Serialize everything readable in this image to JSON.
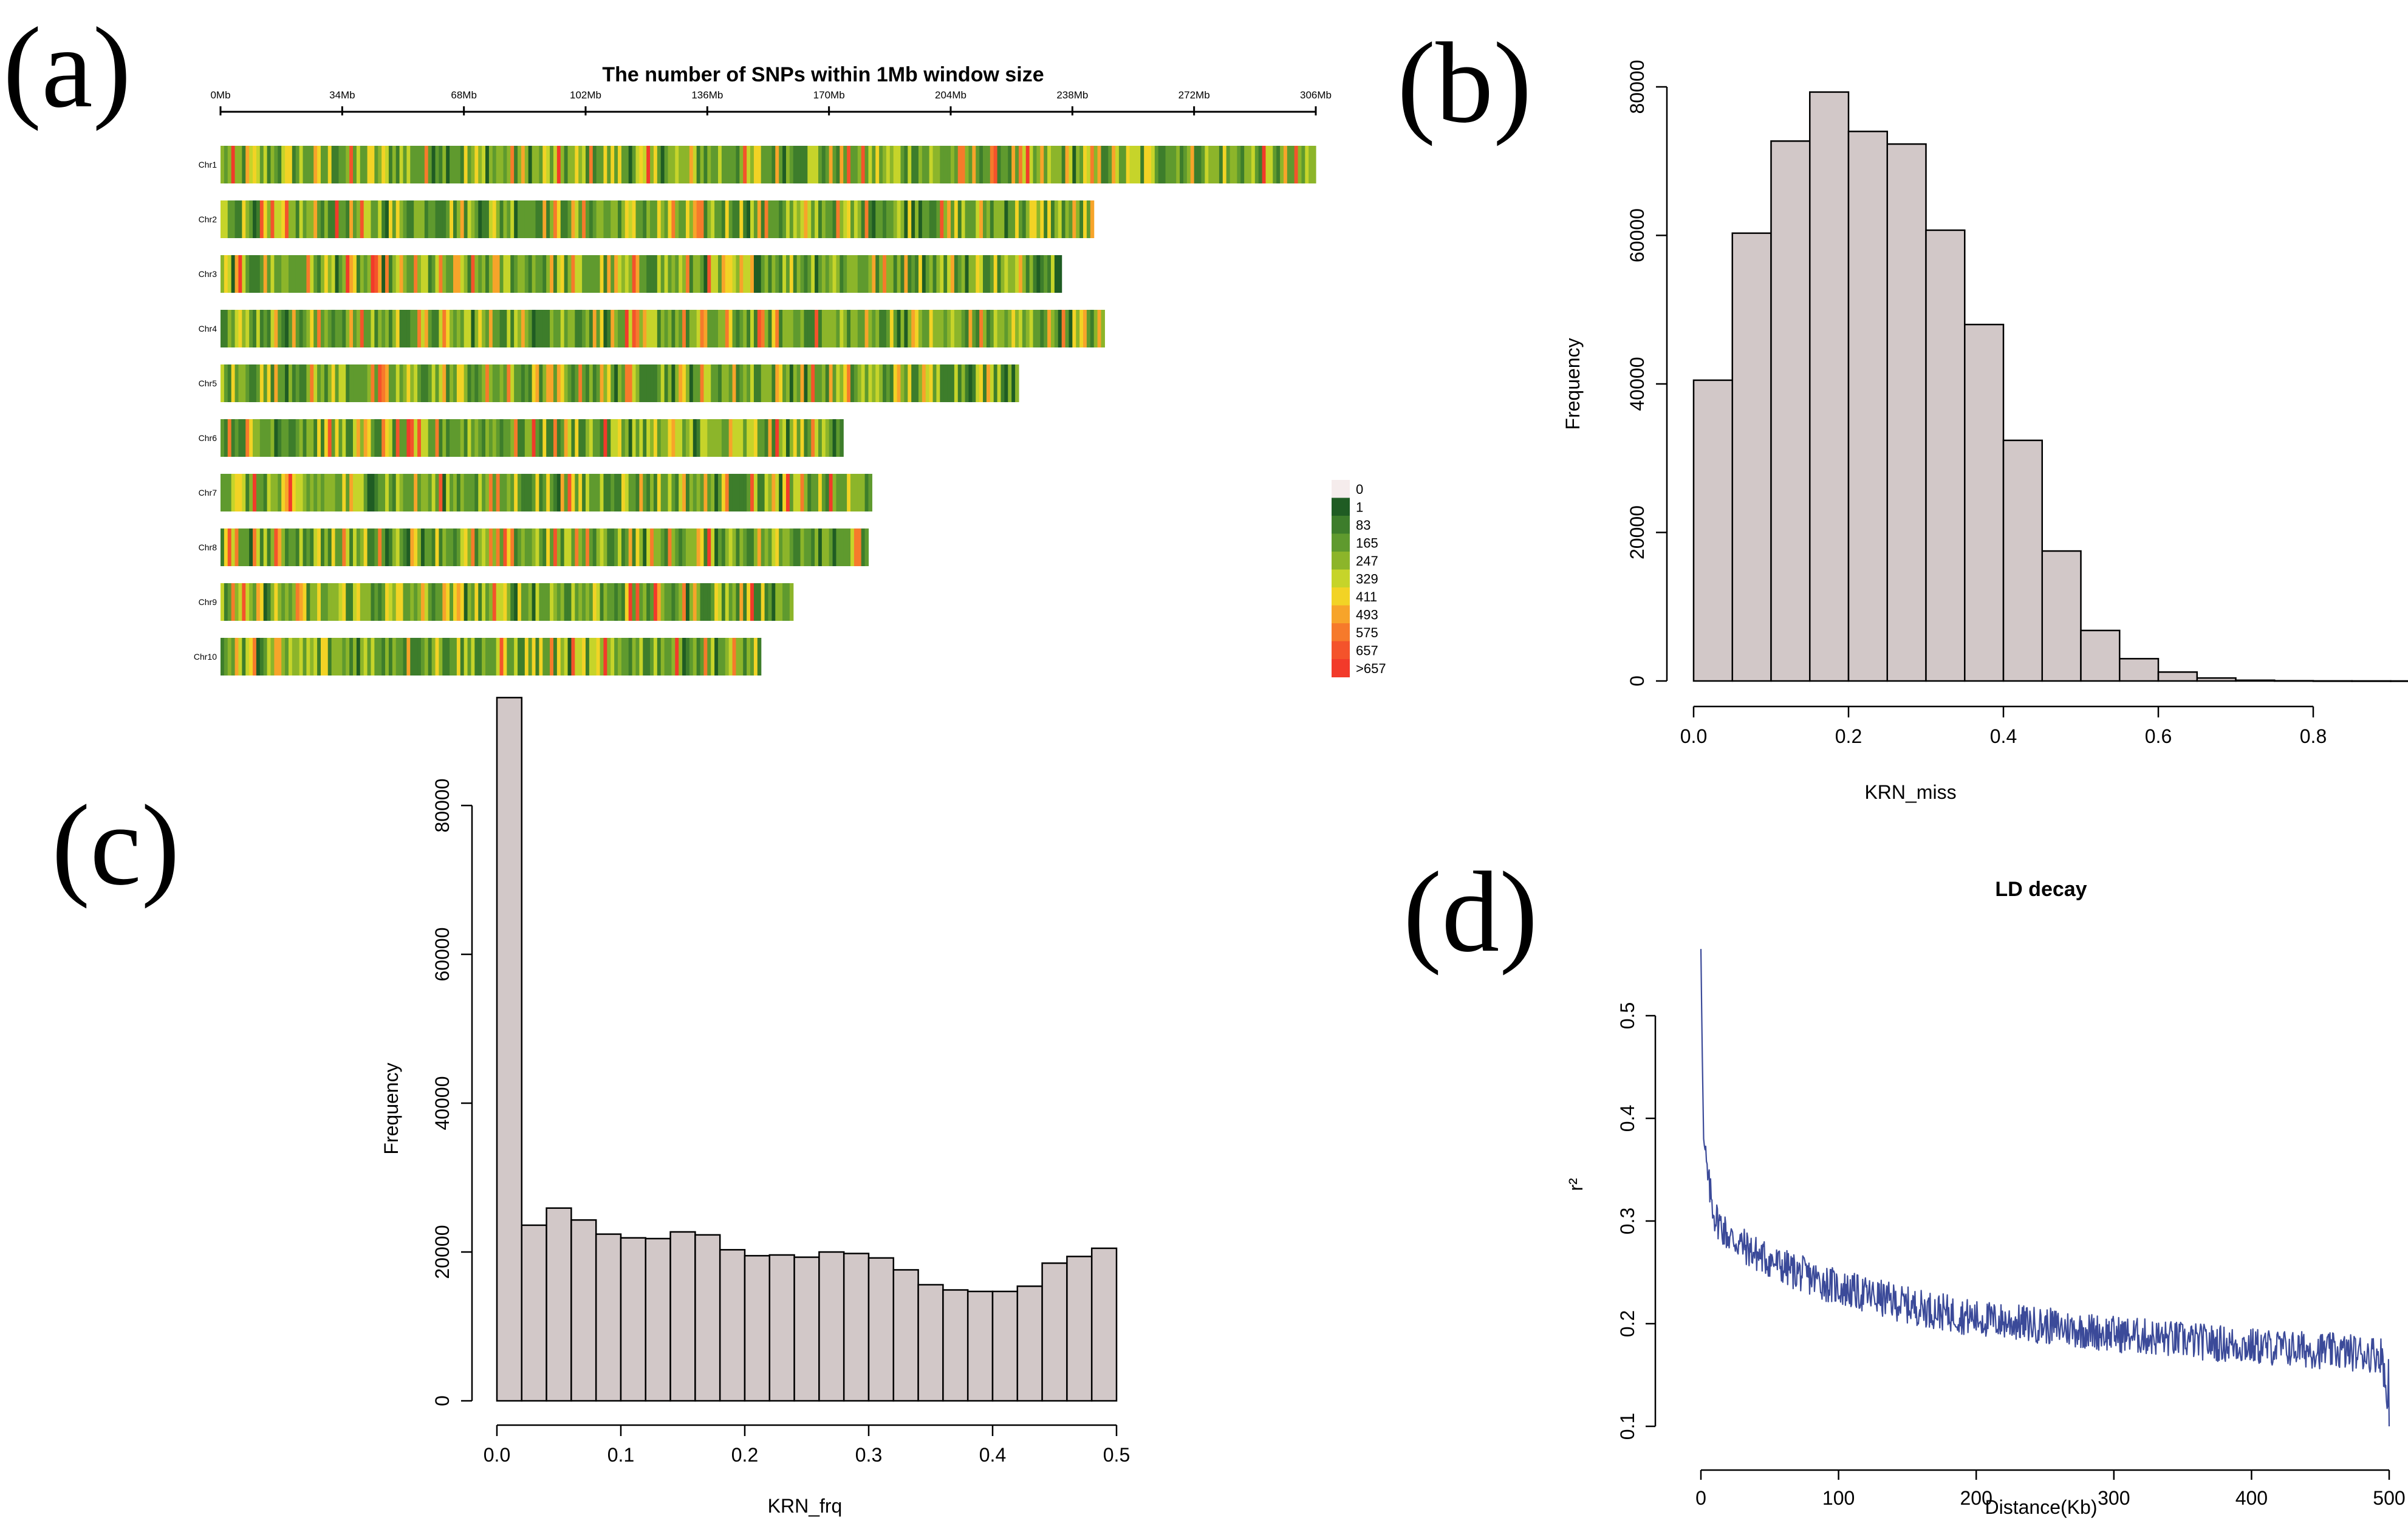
{
  "panel_labels": [
    "(a)",
    "(b)",
    "(c)",
    "(d)"
  ],
  "chart_data": [
    {
      "id": "a",
      "type": "heatmap",
      "title": "The number of SNPs within 1Mb window size",
      "ruler_labels": [
        "0Mb",
        "34Mb",
        "68Mb",
        "102Mb",
        "136Mb",
        "170Mb",
        "204Mb",
        "238Mb",
        "272Mb",
        "306Mb"
      ],
      "ruler_values": [
        0,
        34,
        68,
        102,
        136,
        170,
        204,
        238,
        272,
        306
      ],
      "chromosomes": [
        {
          "name": "Chr1",
          "length": 306
        },
        {
          "name": "Chr2",
          "length": 244
        },
        {
          "name": "Chr3",
          "length": 235
        },
        {
          "name": "Chr4",
          "length": 247
        },
        {
          "name": "Chr5",
          "length": 223
        },
        {
          "name": "Chr6",
          "length": 174
        },
        {
          "name": "Chr7",
          "length": 182
        },
        {
          "name": "Chr8",
          "length": 181
        },
        {
          "name": "Chr9",
          "length": 160
        },
        {
          "name": "Chr10",
          "length": 151
        }
      ],
      "legend": {
        "labels": [
          "0",
          "1",
          "83",
          "165",
          "247",
          "329",
          "411",
          "493",
          "575",
          "657",
          ">657"
        ],
        "colors": [
          "#f5ecec",
          "#1f5c23",
          "#3d7d2b",
          "#5f9a2e",
          "#8cb52a",
          "#c6d42a",
          "#f2d325",
          "#f7a42a",
          "#f67a2b",
          "#f4532b",
          "#f23a2a"
        ]
      }
    },
    {
      "id": "b",
      "type": "bar",
      "xlabel": "KRN_miss",
      "ylabel": "Frequency",
      "bin_width": 0.05,
      "bin_start": 0.0,
      "values": [
        40500,
        60300,
        72700,
        79300,
        74000,
        72300,
        60700,
        48000,
        32400,
        17500,
        6800,
        3000,
        1200,
        400,
        100,
        30,
        10,
        5,
        2
      ],
      "xticks": [
        "0.0",
        "0.2",
        "0.4",
        "0.6",
        "0.8"
      ],
      "yticks": [
        "0",
        "20000",
        "40000",
        "60000",
        "80000"
      ],
      "ylim": [
        0,
        80000
      ],
      "bar_color": "#d2c8c8"
    },
    {
      "id": "c",
      "type": "bar",
      "xlabel": "KRN_frq",
      "ylabel": "Frequency",
      "bin_width": 0.02,
      "bin_start": 0.0,
      "values": [
        94500,
        23600,
        25900,
        24300,
        22400,
        21900,
        21800,
        22700,
        22300,
        20300,
        19500,
        19600,
        19300,
        20000,
        19800,
        19200,
        17600,
        15600,
        14900,
        14700,
        14700,
        15400,
        18500,
        19400,
        20500
      ],
      "xticks": [
        "0.0",
        "0.1",
        "0.2",
        "0.3",
        "0.4",
        "0.5"
      ],
      "yticks": [
        "0",
        "20000",
        "40000",
        "60000",
        "80000"
      ],
      "ylim": [
        0,
        80000
      ],
      "bar_color": "#d2c8c8"
    },
    {
      "id": "d",
      "type": "line",
      "title": "LD decay",
      "xlabel": "Distance(Kb)",
      "ylabel": "r²",
      "xlim": [
        0,
        500
      ],
      "ylim": [
        0.1,
        0.5
      ],
      "xticks": [
        "0",
        "100",
        "200",
        "300",
        "400",
        "500"
      ],
      "yticks": [
        "0.1",
        "0.2",
        "0.3",
        "0.4",
        "0.5"
      ],
      "series": [
        {
          "color": "#3b4a99"
        }
      ],
      "trend_points": [
        [
          0,
          0.565
        ],
        [
          1,
          0.46
        ],
        [
          2,
          0.38
        ],
        [
          5,
          0.34
        ],
        [
          10,
          0.305
        ],
        [
          20,
          0.285
        ],
        [
          40,
          0.268
        ],
        [
          60,
          0.255
        ],
        [
          100,
          0.235
        ],
        [
          150,
          0.218
        ],
        [
          200,
          0.205
        ],
        [
          250,
          0.198
        ],
        [
          300,
          0.19
        ],
        [
          350,
          0.184
        ],
        [
          400,
          0.178
        ],
        [
          450,
          0.174
        ],
        [
          495,
          0.17
        ],
        [
          500,
          0.1
        ]
      ]
    }
  ]
}
